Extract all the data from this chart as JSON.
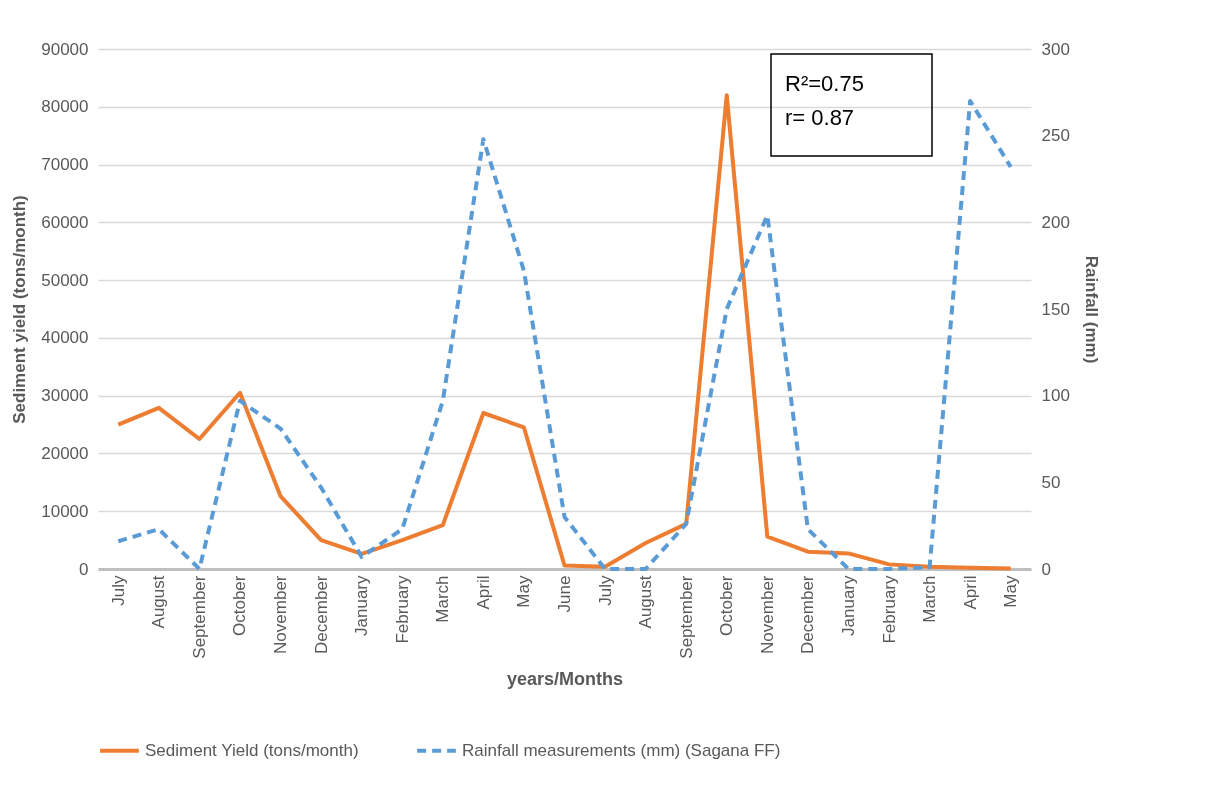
{
  "chart_data": {
    "type": "line",
    "xlabel": "years/Months",
    "ylabel": "Sediment yield (tons/month)",
    "y2label": "Rainfall (mm)",
    "categories": [
      "July",
      "August",
      "September",
      "October",
      "November",
      "December",
      "January",
      "February",
      "March",
      "April",
      "May",
      "June",
      "July",
      "August",
      "September",
      "October",
      "November",
      "December",
      "January",
      "February",
      "March",
      "April",
      "May"
    ],
    "series": [
      {
        "name": "Sediment Yield (tons/month)",
        "color": "#ed7d31",
        "line_style": "solid",
        "values": [
          25000,
          27900,
          22500,
          30500,
          12600,
          5000,
          2600,
          5000,
          7600,
          27000,
          24500,
          600,
          400,
          4500,
          7800,
          82000,
          5600,
          3000,
          2700,
          800,
          400,
          200,
          100
        ]
      },
      {
        "name": "Rainfall measurements (mm) (Sagana FF)",
        "color": "#5b9bd5",
        "line_style": "dashed",
        "axis": "y2",
        "values": [
          16,
          23,
          0,
          97,
          81,
          47,
          7,
          23,
          97,
          248,
          172,
          30,
          0,
          0,
          26,
          150,
          204,
          23,
          0,
          0,
          1,
          270,
          232
        ]
      }
    ],
    "ylim": [
      0,
      90000
    ],
    "yticks": [
      0,
      10000,
      20000,
      30000,
      40000,
      50000,
      60000,
      70000,
      80000,
      90000
    ],
    "y2lim": [
      0,
      300
    ],
    "y2ticks": [
      0,
      50,
      100,
      150,
      200,
      250,
      300
    ],
    "grid": "y",
    "legend": "bottom",
    "annotations": [
      "R²=0.75",
      "r= 0.87"
    ]
  }
}
